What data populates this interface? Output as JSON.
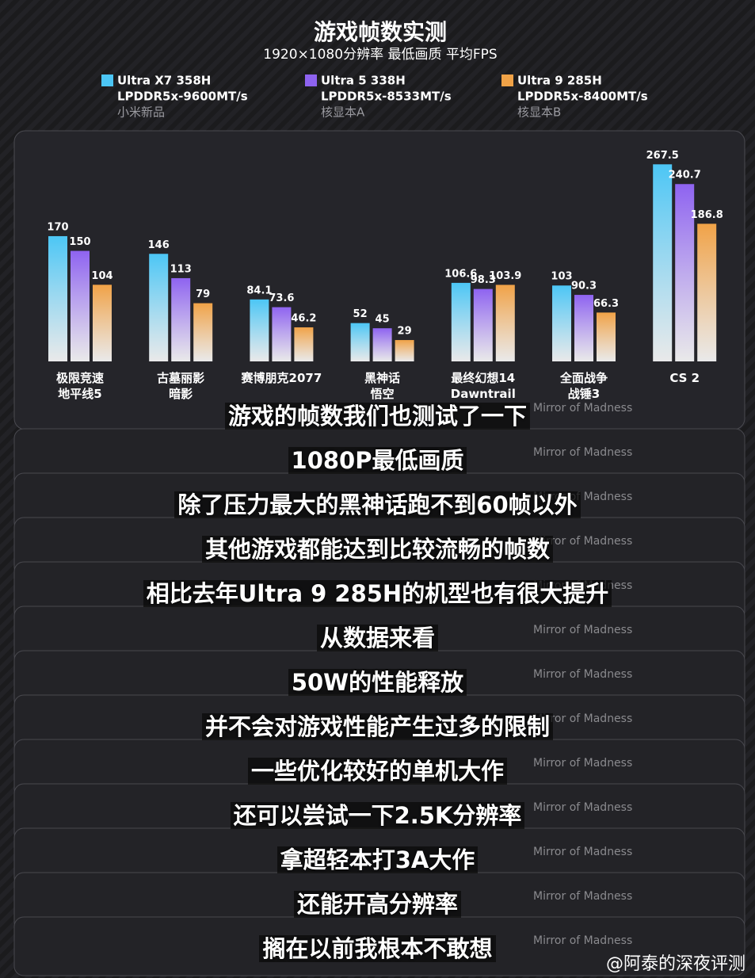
{
  "header": {
    "title": "游戏帧数实测",
    "subtitle": "1920×1080分辨率  最低画质  平均FPS"
  },
  "chart_data": {
    "type": "bar",
    "categories": [
      "极限竞速\n地平线5",
      "古墓丽影\n暗影",
      "赛博朋克2077",
      "黑神话\n悟空",
      "最终幻想14\nDawntrail",
      "全面战争\n战锤3",
      "CS 2"
    ],
    "series": [
      {
        "name": "Ultra X7 358H",
        "memory": "LPDDR5x-9600MT/s",
        "note": "小米新品",
        "color": "#4cc6f5",
        "values": [
          170,
          146,
          84.1,
          52,
          106.6,
          103,
          267.5
        ]
      },
      {
        "name": "Ultra 5 338H",
        "memory": "LPDDR5x-8533MT/s",
        "note": "核显本A",
        "color": "#8e63f0",
        "values": [
          150,
          113,
          73.6,
          45,
          98.3,
          90.3,
          240.7
        ]
      },
      {
        "name": "Ultra 9 285H",
        "memory": "LPDDR5x-8400MT/s",
        "note": "核显本B",
        "color": "#f0a247",
        "values": [
          104,
          79,
          46.2,
          29,
          103.9,
          66.3,
          186.8
        ]
      }
    ],
    "ylim": [
      0,
      270
    ]
  },
  "captions": [
    "游戏的帧数我们也测试了一下",
    "1080P最低画质",
    "除了压力最大的黑神话跑不到60帧以外",
    "其他游戏都能达到比较流畅的帧数",
    "相比去年Ultra 9 285H的机型也有很大提升",
    "从数据来看",
    "50W的性能释放",
    "并不会对游戏性能产生过多的限制",
    "一些优化较好的单机大作",
    "还可以尝试一下2.5K分辨率",
    "拿超轻本打3A大作",
    "还能开高分辨率",
    "搁在以前我根本不敢想"
  ],
  "watermark": "Mirror of Madness",
  "credit": "@阿泰的深夜评测"
}
